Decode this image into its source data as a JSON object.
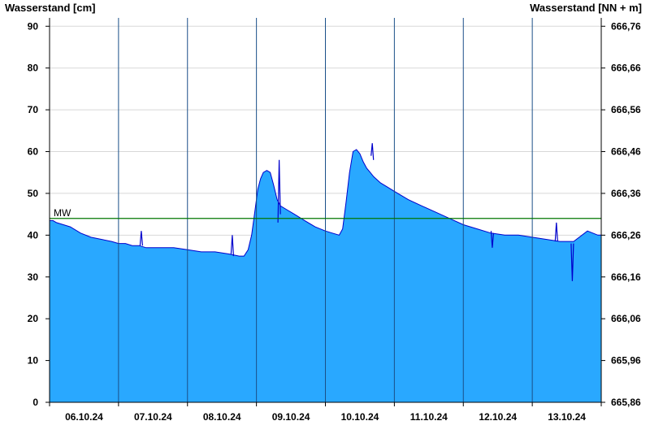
{
  "chart_data": {
    "type": "area",
    "y_left_label": "Wasserstand [cm]",
    "y_right_label": "Wasserstand [NN + m]",
    "y_left_ticks": [
      "0",
      "10",
      "20",
      "30",
      "40",
      "50",
      "60",
      "70",
      "80",
      "90"
    ],
    "y_right_ticks": [
      "665,86",
      "665,96",
      "666,06",
      "666,16",
      "666,26",
      "666,36",
      "666,46",
      "666,56",
      "666,66",
      "666,76"
    ],
    "ylim": [
      0,
      92
    ],
    "x_ticks": [
      "06.10.24",
      "07.10.24",
      "08.10.24",
      "09.10.24",
      "10.10.24",
      "11.10.24",
      "12.10.24",
      "13.10.24"
    ],
    "mw_label": "MW",
    "mw_value": 44,
    "colors": {
      "fill": "#29a8ff",
      "line": "#0000cc",
      "mw_line": "#007700",
      "grid": "#d8d8d8"
    },
    "series": [
      {
        "t": [
          0,
          0.05,
          0.1,
          0.2,
          0.3,
          0.45,
          0.6,
          0.75,
          0.9,
          1.0,
          1.1,
          1.2,
          1.3,
          1.4,
          1.5,
          1.6,
          1.8,
          2.0,
          2.2,
          2.4,
          2.6,
          2.75,
          2.82,
          2.88,
          2.93,
          2.98,
          3.02,
          3.06,
          3.1,
          3.15,
          3.2,
          3.25,
          3.3,
          3.35,
          3.45,
          3.55,
          3.7,
          3.85,
          4.0,
          4.1,
          4.2,
          4.25,
          4.3,
          4.35,
          4.4,
          4.45,
          4.5,
          4.55,
          4.6,
          4.65,
          4.7,
          4.8,
          4.9,
          5.0,
          5.2,
          5.4,
          5.6,
          5.8,
          6.0,
          6.2,
          6.4,
          6.6,
          6.8,
          7.0,
          7.2,
          7.4,
          7.6,
          7.8,
          7.95,
          8.0
        ],
        "values": [
          43.5,
          43.5,
          43,
          42.5,
          42,
          40.5,
          39.5,
          39,
          38.5,
          38,
          38,
          37.5,
          37.5,
          37,
          37,
          37,
          37,
          36.5,
          36,
          36,
          35.5,
          35,
          35,
          36.5,
          40,
          46,
          51,
          53.5,
          55,
          55.5,
          55,
          52,
          48.5,
          47,
          46,
          45,
          43.5,
          42,
          41,
          40.5,
          40,
          41.5,
          48,
          55,
          60,
          60.5,
          59.5,
          57.5,
          56,
          55,
          54,
          52.5,
          51.5,
          50.5,
          48.5,
          47,
          45.5,
          44,
          42.5,
          41.5,
          40.5,
          40,
          40,
          39.5,
          39,
          38.5,
          38.5,
          41,
          40,
          40
        ]
      }
    ],
    "spikes": [
      {
        "t": 3.33,
        "values": [
          43,
          58,
          45
        ]
      },
      {
        "t": 4.68,
        "values": [
          59,
          62,
          58
        ]
      },
      {
        "t": 6.42,
        "values": [
          41,
          37,
          40.5
        ]
      },
      {
        "t": 7.58,
        "values": [
          38,
          29,
          38
        ]
      },
      {
        "t": 1.33,
        "values": [
          37.5,
          41,
          37.5
        ]
      },
      {
        "t": 2.65,
        "values": [
          35.5,
          40,
          35
        ]
      },
      {
        "t": 7.35,
        "values": [
          38.5,
          43,
          38.5
        ]
      }
    ]
  }
}
